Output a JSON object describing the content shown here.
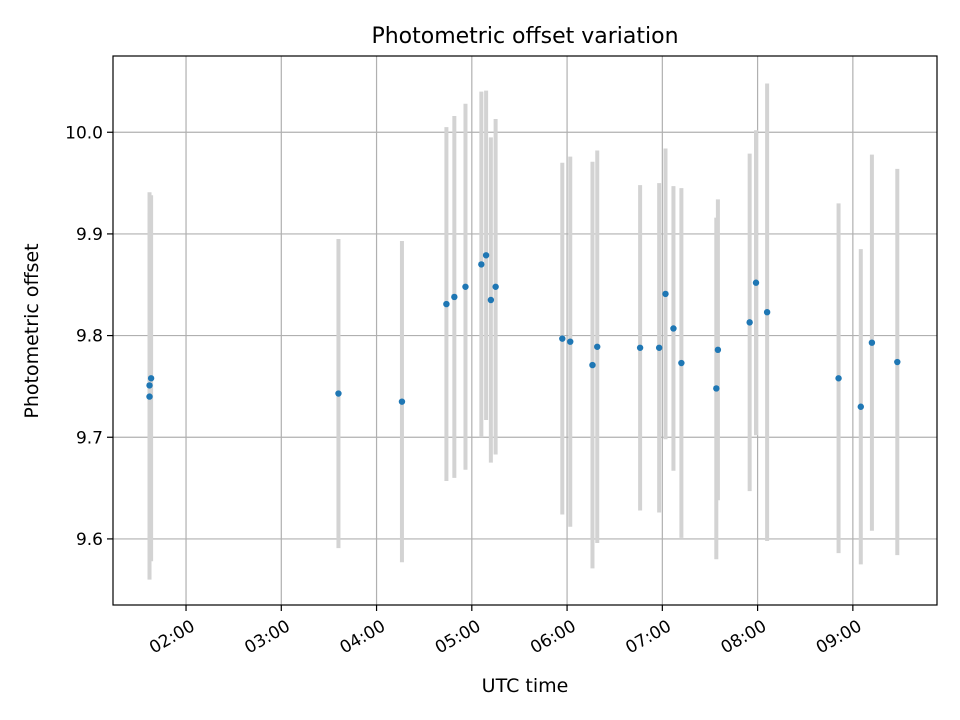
{
  "chart_data": {
    "type": "scatter",
    "title": "Photometric offset variation",
    "xlabel": "UTC time",
    "ylabel": "Photometric offset",
    "grid": true,
    "legend": "none",
    "xlim": [
      "01:14",
      "09:53"
    ],
    "ylim": [
      9.535,
      10.075
    ],
    "x_ticks": [
      "02:00",
      "03:00",
      "04:00",
      "05:00",
      "06:00",
      "07:00",
      "08:00",
      "09:00"
    ],
    "y_ticks": [
      "9.6",
      "9.7",
      "9.8",
      "9.9",
      "10.0"
    ],
    "colors": {
      "point": "#1f77b4",
      "errorbar": "#d3d3d3",
      "grid": "#b0b0b0"
    },
    "series": [
      {
        "points": [
          {
            "x": "01:37",
            "y": 9.74,
            "yerr": 0.18
          },
          {
            "x": "01:37",
            "y": 9.751,
            "yerr": 0.19
          },
          {
            "x": "01:38",
            "y": 9.758,
            "yerr": 0.18
          },
          {
            "x": "03:36",
            "y": 9.743,
            "yerr": 0.152
          },
          {
            "x": "04:16",
            "y": 9.735,
            "yerr": 0.158
          },
          {
            "x": "04:44",
            "y": 9.831,
            "yerr": 0.174
          },
          {
            "x": "04:49",
            "y": 9.838,
            "yerr": 0.178
          },
          {
            "x": "04:56",
            "y": 9.848,
            "yerr": 0.18
          },
          {
            "x": "05:06",
            "y": 9.87,
            "yerr": 0.17
          },
          {
            "x": "05:09",
            "y": 9.879,
            "yerr": 0.162
          },
          {
            "x": "05:12",
            "y": 9.835,
            "yerr": 0.16
          },
          {
            "x": "05:15",
            "y": 9.848,
            "yerr": 0.165
          },
          {
            "x": "05:57",
            "y": 9.797,
            "yerr": 0.173
          },
          {
            "x": "06:02",
            "y": 9.794,
            "yerr": 0.182
          },
          {
            "x": "06:16",
            "y": 9.771,
            "yerr": 0.2
          },
          {
            "x": "06:19",
            "y": 9.789,
            "yerr": 0.193
          },
          {
            "x": "06:46",
            "y": 9.788,
            "yerr": 0.16
          },
          {
            "x": "06:58",
            "y": 9.788,
            "yerr": 0.162
          },
          {
            "x": "07:02",
            "y": 9.841,
            "yerr": 0.143
          },
          {
            "x": "07:07",
            "y": 9.807,
            "yerr": 0.14
          },
          {
            "x": "07:12",
            "y": 9.773,
            "yerr": 0.172
          },
          {
            "x": "07:34",
            "y": 9.748,
            "yerr": 0.168
          },
          {
            "x": "07:35",
            "y": 9.786,
            "yerr": 0.148
          },
          {
            "x": "07:55",
            "y": 9.813,
            "yerr": 0.166
          },
          {
            "x": "07:59",
            "y": 9.852,
            "yerr": 0.15
          },
          {
            "x": "08:06",
            "y": 9.823,
            "yerr": 0.225
          },
          {
            "x": "08:51",
            "y": 9.758,
            "yerr": 0.172
          },
          {
            "x": "09:05",
            "y": 9.73,
            "yerr": 0.155
          },
          {
            "x": "09:12",
            "y": 9.793,
            "yerr": 0.185
          },
          {
            "x": "09:28",
            "y": 9.774,
            "yerr": 0.19
          }
        ]
      }
    ]
  }
}
